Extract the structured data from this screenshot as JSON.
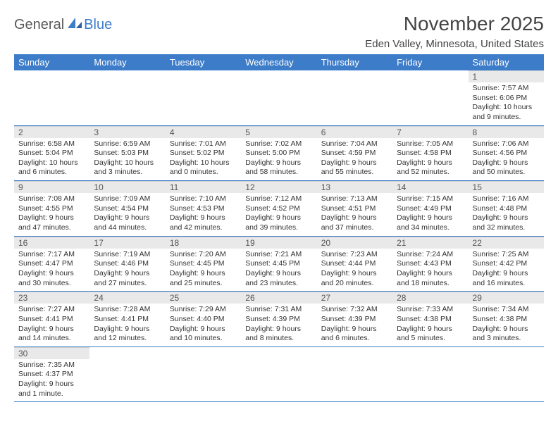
{
  "logo": {
    "text1": "General",
    "text2": "Blue"
  },
  "title": "November 2025",
  "location": "Eden Valley, Minnesota, United States",
  "colors": {
    "header_bg": "#3d7cc9",
    "header_text": "#ffffff",
    "daynum_bg": "#e9e9e9",
    "row_border": "#3d7cc9",
    "body_text": "#333333",
    "logo_gray": "#58595b",
    "logo_blue": "#3d7cc9",
    "page_bg": "#ffffff"
  },
  "weekdays": [
    "Sunday",
    "Monday",
    "Tuesday",
    "Wednesday",
    "Thursday",
    "Friday",
    "Saturday"
  ],
  "weeks": [
    [
      null,
      null,
      null,
      null,
      null,
      null,
      {
        "n": "1",
        "sunrise": "Sunrise: 7:57 AM",
        "sunset": "Sunset: 6:06 PM",
        "daylight": "Daylight: 10 hours and 9 minutes."
      }
    ],
    [
      {
        "n": "2",
        "sunrise": "Sunrise: 6:58 AM",
        "sunset": "Sunset: 5:04 PM",
        "daylight": "Daylight: 10 hours and 6 minutes."
      },
      {
        "n": "3",
        "sunrise": "Sunrise: 6:59 AM",
        "sunset": "Sunset: 5:03 PM",
        "daylight": "Daylight: 10 hours and 3 minutes."
      },
      {
        "n": "4",
        "sunrise": "Sunrise: 7:01 AM",
        "sunset": "Sunset: 5:02 PM",
        "daylight": "Daylight: 10 hours and 0 minutes."
      },
      {
        "n": "5",
        "sunrise": "Sunrise: 7:02 AM",
        "sunset": "Sunset: 5:00 PM",
        "daylight": "Daylight: 9 hours and 58 minutes."
      },
      {
        "n": "6",
        "sunrise": "Sunrise: 7:04 AM",
        "sunset": "Sunset: 4:59 PM",
        "daylight": "Daylight: 9 hours and 55 minutes."
      },
      {
        "n": "7",
        "sunrise": "Sunrise: 7:05 AM",
        "sunset": "Sunset: 4:58 PM",
        "daylight": "Daylight: 9 hours and 52 minutes."
      },
      {
        "n": "8",
        "sunrise": "Sunrise: 7:06 AM",
        "sunset": "Sunset: 4:56 PM",
        "daylight": "Daylight: 9 hours and 50 minutes."
      }
    ],
    [
      {
        "n": "9",
        "sunrise": "Sunrise: 7:08 AM",
        "sunset": "Sunset: 4:55 PM",
        "daylight": "Daylight: 9 hours and 47 minutes."
      },
      {
        "n": "10",
        "sunrise": "Sunrise: 7:09 AM",
        "sunset": "Sunset: 4:54 PM",
        "daylight": "Daylight: 9 hours and 44 minutes."
      },
      {
        "n": "11",
        "sunrise": "Sunrise: 7:10 AM",
        "sunset": "Sunset: 4:53 PM",
        "daylight": "Daylight: 9 hours and 42 minutes."
      },
      {
        "n": "12",
        "sunrise": "Sunrise: 7:12 AM",
        "sunset": "Sunset: 4:52 PM",
        "daylight": "Daylight: 9 hours and 39 minutes."
      },
      {
        "n": "13",
        "sunrise": "Sunrise: 7:13 AM",
        "sunset": "Sunset: 4:51 PM",
        "daylight": "Daylight: 9 hours and 37 minutes."
      },
      {
        "n": "14",
        "sunrise": "Sunrise: 7:15 AM",
        "sunset": "Sunset: 4:49 PM",
        "daylight": "Daylight: 9 hours and 34 minutes."
      },
      {
        "n": "15",
        "sunrise": "Sunrise: 7:16 AM",
        "sunset": "Sunset: 4:48 PM",
        "daylight": "Daylight: 9 hours and 32 minutes."
      }
    ],
    [
      {
        "n": "16",
        "sunrise": "Sunrise: 7:17 AM",
        "sunset": "Sunset: 4:47 PM",
        "daylight": "Daylight: 9 hours and 30 minutes."
      },
      {
        "n": "17",
        "sunrise": "Sunrise: 7:19 AM",
        "sunset": "Sunset: 4:46 PM",
        "daylight": "Daylight: 9 hours and 27 minutes."
      },
      {
        "n": "18",
        "sunrise": "Sunrise: 7:20 AM",
        "sunset": "Sunset: 4:45 PM",
        "daylight": "Daylight: 9 hours and 25 minutes."
      },
      {
        "n": "19",
        "sunrise": "Sunrise: 7:21 AM",
        "sunset": "Sunset: 4:45 PM",
        "daylight": "Daylight: 9 hours and 23 minutes."
      },
      {
        "n": "20",
        "sunrise": "Sunrise: 7:23 AM",
        "sunset": "Sunset: 4:44 PM",
        "daylight": "Daylight: 9 hours and 20 minutes."
      },
      {
        "n": "21",
        "sunrise": "Sunrise: 7:24 AM",
        "sunset": "Sunset: 4:43 PM",
        "daylight": "Daylight: 9 hours and 18 minutes."
      },
      {
        "n": "22",
        "sunrise": "Sunrise: 7:25 AM",
        "sunset": "Sunset: 4:42 PM",
        "daylight": "Daylight: 9 hours and 16 minutes."
      }
    ],
    [
      {
        "n": "23",
        "sunrise": "Sunrise: 7:27 AM",
        "sunset": "Sunset: 4:41 PM",
        "daylight": "Daylight: 9 hours and 14 minutes."
      },
      {
        "n": "24",
        "sunrise": "Sunrise: 7:28 AM",
        "sunset": "Sunset: 4:41 PM",
        "daylight": "Daylight: 9 hours and 12 minutes."
      },
      {
        "n": "25",
        "sunrise": "Sunrise: 7:29 AM",
        "sunset": "Sunset: 4:40 PM",
        "daylight": "Daylight: 9 hours and 10 minutes."
      },
      {
        "n": "26",
        "sunrise": "Sunrise: 7:31 AM",
        "sunset": "Sunset: 4:39 PM",
        "daylight": "Daylight: 9 hours and 8 minutes."
      },
      {
        "n": "27",
        "sunrise": "Sunrise: 7:32 AM",
        "sunset": "Sunset: 4:39 PM",
        "daylight": "Daylight: 9 hours and 6 minutes."
      },
      {
        "n": "28",
        "sunrise": "Sunrise: 7:33 AM",
        "sunset": "Sunset: 4:38 PM",
        "daylight": "Daylight: 9 hours and 5 minutes."
      },
      {
        "n": "29",
        "sunrise": "Sunrise: 7:34 AM",
        "sunset": "Sunset: 4:38 PM",
        "daylight": "Daylight: 9 hours and 3 minutes."
      }
    ],
    [
      {
        "n": "30",
        "sunrise": "Sunrise: 7:35 AM",
        "sunset": "Sunset: 4:37 PM",
        "daylight": "Daylight: 9 hours and 1 minute."
      },
      null,
      null,
      null,
      null,
      null,
      null
    ]
  ]
}
